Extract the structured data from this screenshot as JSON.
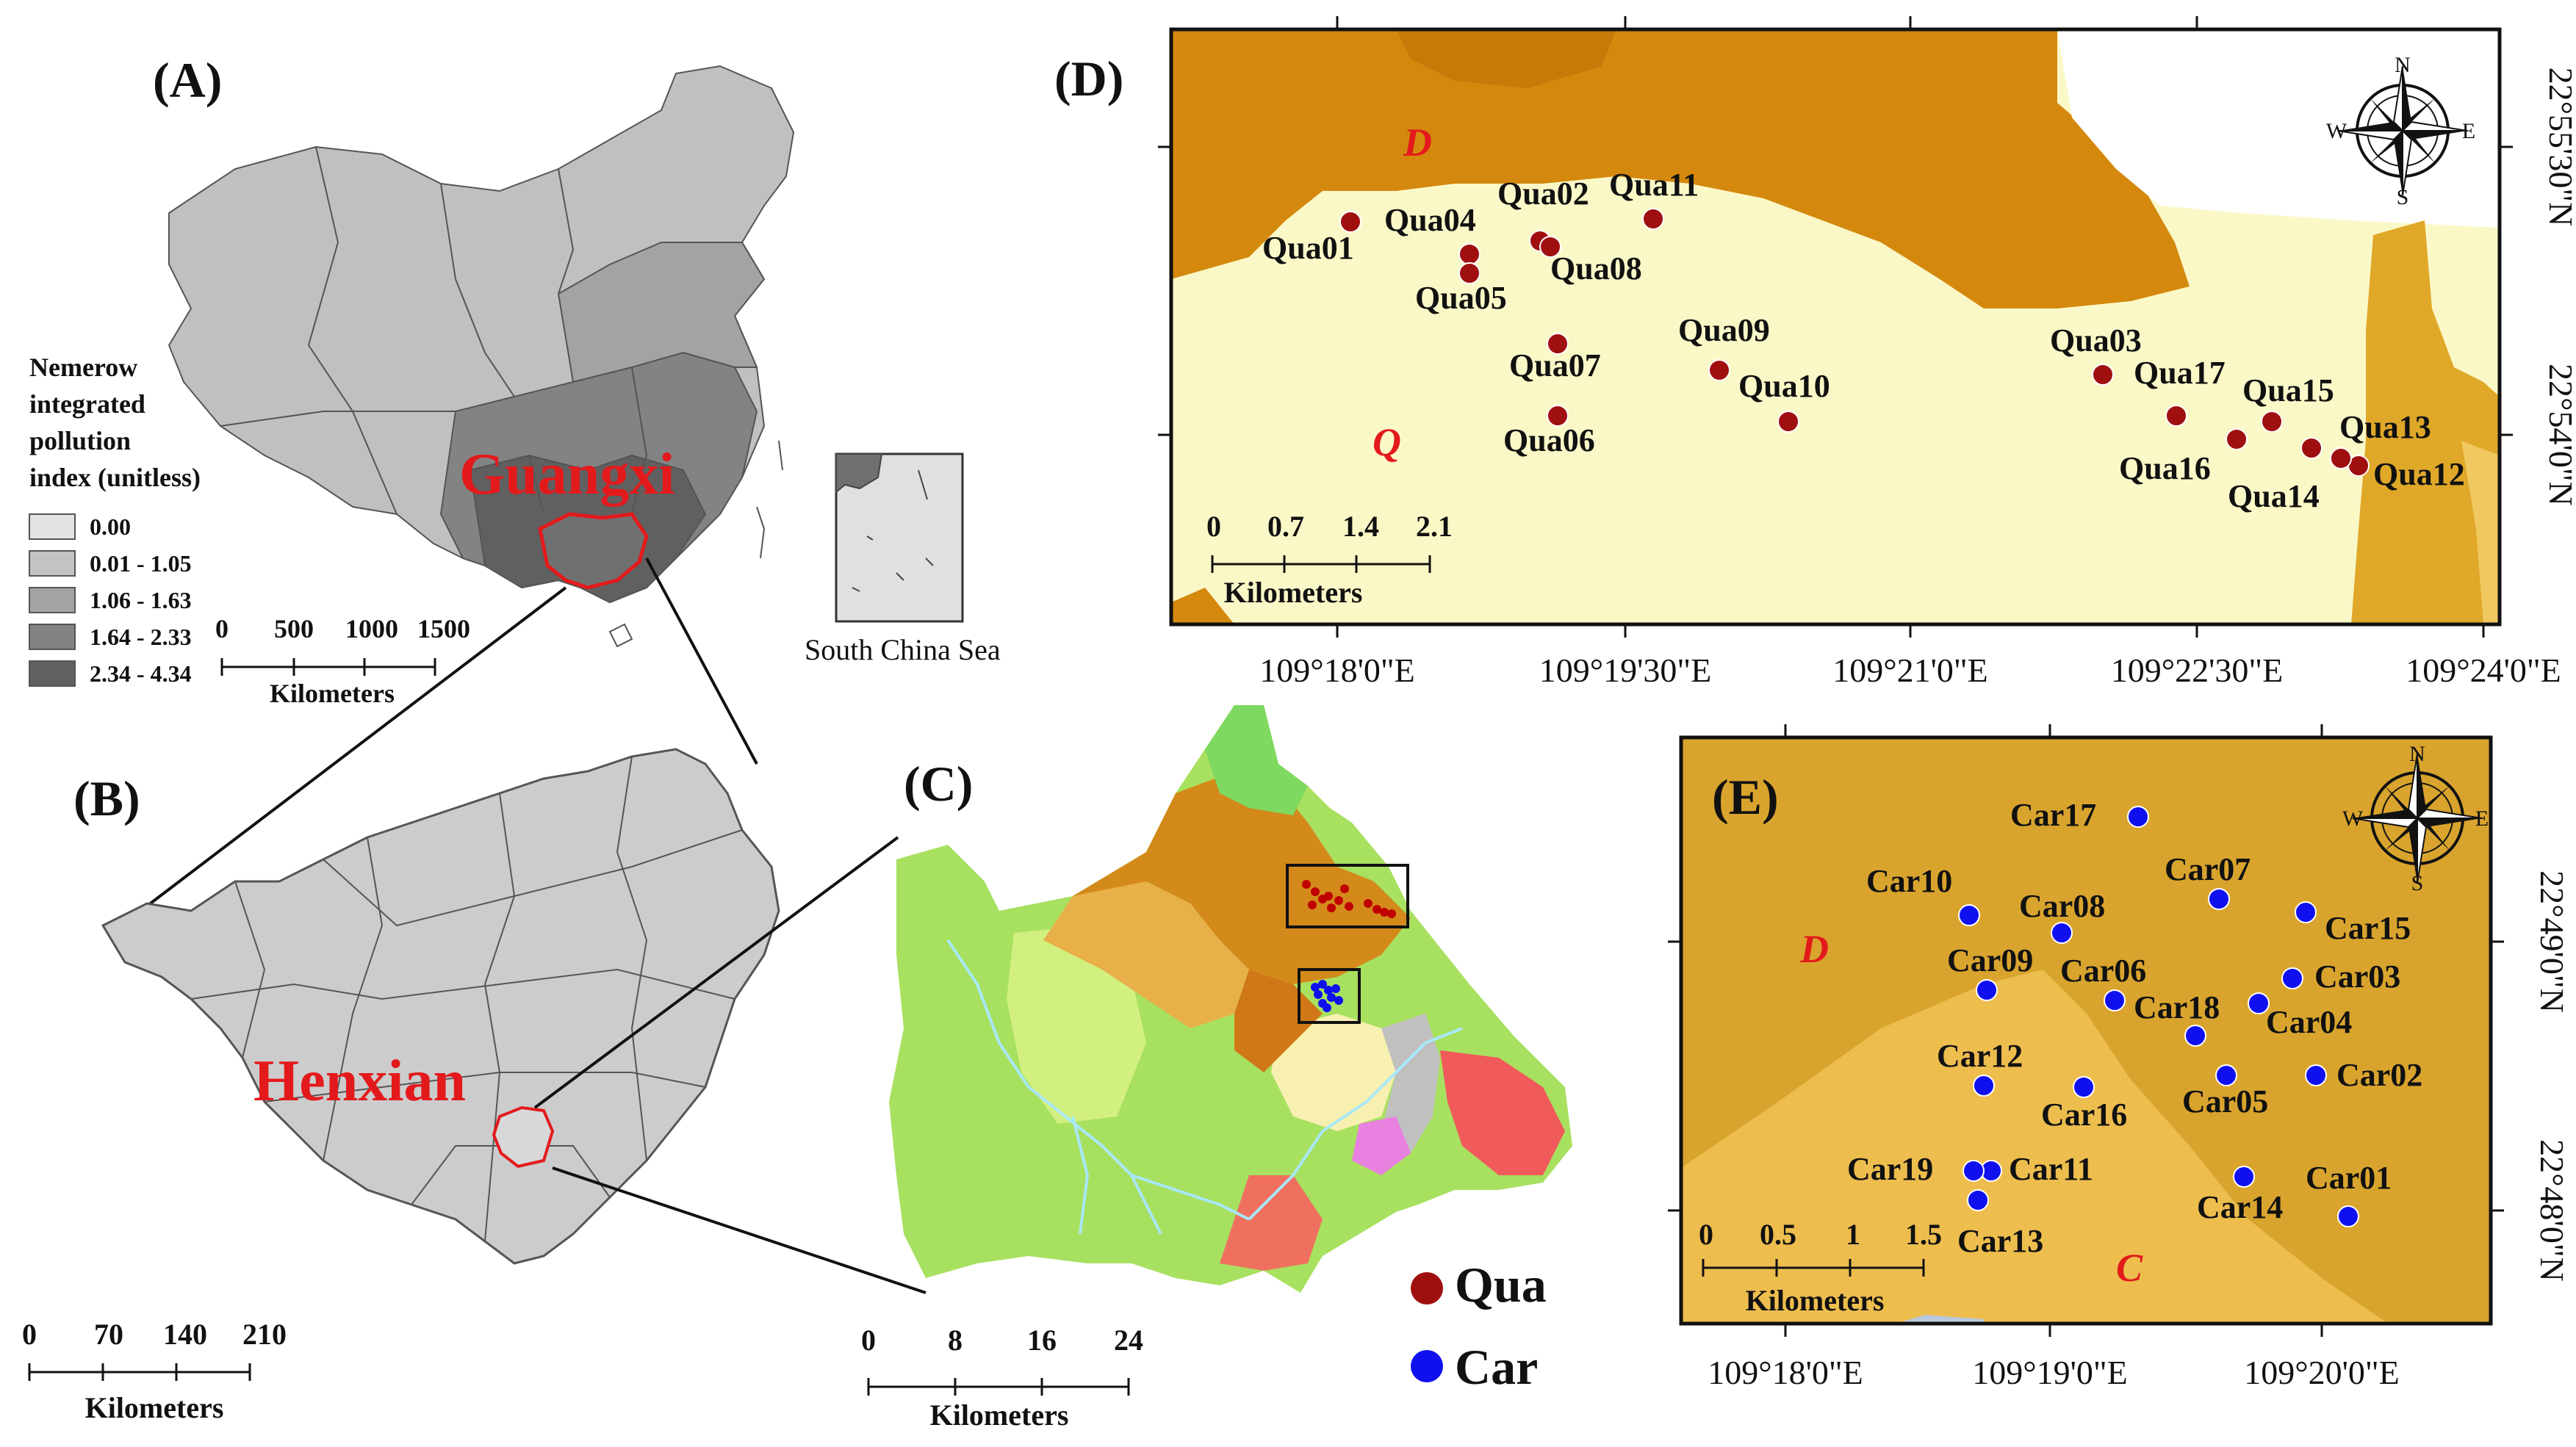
{
  "panels": {
    "A": {
      "label": "(A)",
      "region_label": "Guangxi",
      "inset_label": "South China Sea",
      "legend": {
        "title_lines": [
          "Nemerow",
          "integrated",
          "pollution",
          "index (unitless)"
        ],
        "classes": [
          {
            "label": "0.00",
            "color": "#e3e3e3"
          },
          {
            "label": "0.01 - 1.05",
            "color": "#c3c3c3"
          },
          {
            "label": "1.06 - 1.63",
            "color": "#a3a3a3"
          },
          {
            "label": "1.64 - 2.33",
            "color": "#838383"
          },
          {
            "label": "2.34 - 4.34",
            "color": "#606060"
          }
        ]
      },
      "scale": {
        "ticks": [
          "0",
          "500",
          "1000",
          "1500"
        ],
        "unit": "Kilometers"
      }
    },
    "B": {
      "label": "(B)",
      "region_label": "Henxian",
      "scale": {
        "ticks": [
          "0",
          "70",
          "140",
          "210"
        ],
        "unit": "Kilometers"
      }
    },
    "C": {
      "label": "(C)",
      "scale": {
        "ticks": [
          "0",
          "8",
          "16",
          "24"
        ],
        "unit": "Kilometers"
      },
      "legend": [
        {
          "label": "Qua",
          "color": "#a00f0f"
        },
        {
          "label": "Car",
          "color": "#1010ee"
        }
      ]
    },
    "D": {
      "label": "(D)",
      "x_ticks": [
        "109°18'0\"E",
        "109°19'30\"E",
        "109°21'0\"E",
        "109°22'30\"E",
        "109°24'0\"E"
      ],
      "y_ticks": [
        "22°55'30\"N",
        "22°54'0\"N"
      ],
      "unit_labels": [
        "D",
        "Q"
      ],
      "scale": {
        "ticks": [
          "0",
          "0.7",
          "1.4",
          "2.1"
        ],
        "unit": "Kilometers"
      },
      "points": [
        {
          "label": "Qua01"
        },
        {
          "label": "Qua02"
        },
        {
          "label": "Qua03"
        },
        {
          "label": "Qua04"
        },
        {
          "label": "Qua05"
        },
        {
          "label": "Qua06"
        },
        {
          "label": "Qua07"
        },
        {
          "label": "Qua08"
        },
        {
          "label": "Qua09"
        },
        {
          "label": "Qua10"
        },
        {
          "label": "Qua11"
        },
        {
          "label": "Qua12"
        },
        {
          "label": "Qua13"
        },
        {
          "label": "Qua14"
        },
        {
          "label": "Qua15"
        },
        {
          "label": "Qua16"
        },
        {
          "label": "Qua17"
        }
      ],
      "compass": [
        "N",
        "S",
        "W",
        "E"
      ]
    },
    "E": {
      "label": "(E)",
      "x_ticks": [
        "109°18'0\"E",
        "109°19'0\"E",
        "109°20'0\"E"
      ],
      "y_ticks": [
        "22°49'0\"N",
        "22°48'0\"N"
      ],
      "unit_labels": [
        "D",
        "C"
      ],
      "scale": {
        "ticks": [
          "0",
          "0.5",
          "1",
          "1.5"
        ],
        "unit": "Kilometers"
      },
      "points": [
        {
          "label": "Car01"
        },
        {
          "label": "Car02"
        },
        {
          "label": "Car03"
        },
        {
          "label": "Car04"
        },
        {
          "label": "Car05"
        },
        {
          "label": "Car06"
        },
        {
          "label": "Car07"
        },
        {
          "label": "Car08"
        },
        {
          "label": "Car09"
        },
        {
          "label": "Car10"
        },
        {
          "label": "Car11"
        },
        {
          "label": "Car12"
        },
        {
          "label": "Car13"
        },
        {
          "label": "Car14"
        },
        {
          "label": "Car15"
        },
        {
          "label": "Car16"
        },
        {
          "label": "Car17"
        },
        {
          "label": "Car18"
        },
        {
          "label": "Car19"
        }
      ],
      "compass": [
        "N",
        "S",
        "W",
        "E"
      ]
    }
  }
}
